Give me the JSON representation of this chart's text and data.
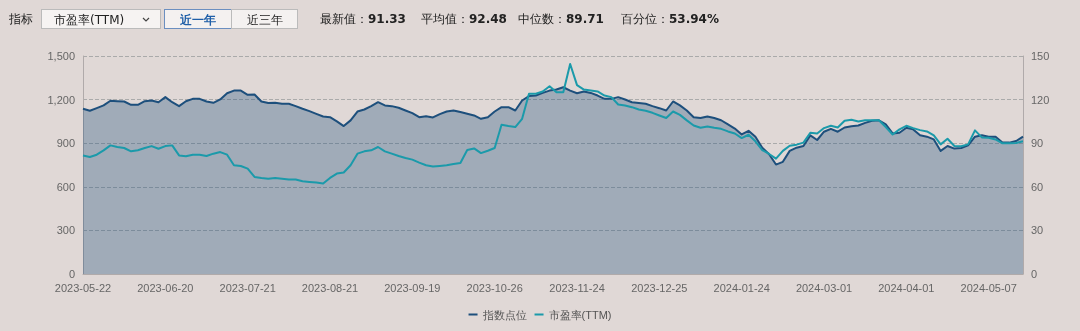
{
  "chart_data": {
    "type": "line",
    "annotations": [
      "指标",
      "市盈率(TTM)",
      "近一年",
      "近三年",
      "最新值：91.33",
      "平均值：92.48",
      "中位数：89.71",
      "百分位：53.94%"
    ],
    "categories": [
      "2023-05-22",
      null,
      null,
      null,
      null,
      null,
      null,
      null,
      null,
      null,
      null,
      null,
      "2023-06-20",
      null,
      null,
      null,
      null,
      null,
      null,
      null,
      null,
      null,
      null,
      null,
      "2023-07-21",
      null,
      null,
      null,
      null,
      null,
      null,
      null,
      null,
      null,
      null,
      null,
      "2023-08-21",
      null,
      null,
      null,
      null,
      null,
      null,
      null,
      null,
      null,
      null,
      null,
      "2023-09-19",
      null,
      null,
      null,
      null,
      null,
      null,
      null,
      null,
      null,
      null,
      null,
      "2023-10-26",
      null,
      null,
      null,
      null,
      null,
      null,
      null,
      null,
      null,
      null,
      null,
      "2023-11-24",
      null,
      null,
      null,
      null,
      null,
      null,
      null,
      null,
      null,
      null,
      null,
      "2023-12-25",
      null,
      null,
      null,
      null,
      null,
      null,
      null,
      null,
      null,
      null,
      null,
      "2024-01-24",
      null,
      null,
      null,
      null,
      null,
      null,
      null,
      null,
      null,
      null,
      null,
      "2024-03-01",
      null,
      null,
      null,
      null,
      null,
      null,
      null,
      null,
      null,
      null,
      null,
      "2024-04-01",
      null,
      null,
      null,
      null,
      null,
      null,
      null,
      null,
      null,
      null,
      null,
      "2024-05-07",
      null,
      null,
      null,
      null,
      null
    ],
    "series": [
      {
        "name": "指数点位",
        "type": "area",
        "color": "#1d4f7c",
        "values": [
          1137,
          1123,
          1141,
          1160,
          1192,
          1189,
          1187,
          1164,
          1164,
          1189,
          1194,
          1182,
          1217,
          1182,
          1155,
          1189,
          1205,
          1205,
          1187,
          1178,
          1201,
          1244,
          1262,
          1262,
          1233,
          1235,
          1187,
          1176,
          1178,
          1171,
          1171,
          1155,
          1137,
          1121,
          1102,
          1084,
          1079,
          1050,
          1018,
          1057,
          1118,
          1132,
          1155,
          1182,
          1160,
          1155,
          1144,
          1125,
          1107,
          1079,
          1086,
          1077,
          1100,
          1118,
          1125,
          1114,
          1102,
          1091,
          1068,
          1079,
          1118,
          1148,
          1148,
          1125,
          1194,
          1224,
          1228,
          1246,
          1262,
          1269,
          1285,
          1262,
          1244,
          1256,
          1246,
          1228,
          1205,
          1205,
          1217,
          1201,
          1182,
          1176,
          1171,
          1155,
          1141,
          1125,
          1187,
          1160,
          1125,
          1079,
          1073,
          1084,
          1073,
          1058,
          1029,
          1001,
          960,
          985,
          945,
          869,
          824,
          753,
          772,
          847,
          869,
          881,
          954,
          922,
          979,
          999,
          979,
          1008,
          1017,
          1022,
          1040,
          1054,
          1058,
          1029,
          967,
          972,
          1006,
          995,
          954,
          945,
          926,
          847,
          881,
          863,
          867,
          885,
          945,
          954,
          945,
          945,
          904,
          904,
          915,
          945
        ]
      },
      {
        "name": "市盈率(TTM)",
        "axis": "y2",
        "color": "#1b9aaa",
        "values": [
          81.6,
          80.5,
          82.1,
          85.1,
          88.5,
          87.4,
          86.7,
          84.4,
          85.1,
          86.7,
          88.0,
          86.2,
          88.0,
          88.5,
          81.6,
          81.0,
          82.1,
          82.1,
          81.2,
          82.8,
          83.9,
          82.1,
          74.8,
          74.3,
          72.5,
          66.8,
          66.1,
          65.6,
          66.1,
          65.6,
          65.0,
          65.0,
          63.8,
          63.3,
          62.9,
          62.2,
          66.1,
          69.1,
          69.8,
          74.8,
          82.8,
          84.4,
          85.1,
          87.4,
          84.4,
          82.8,
          81.2,
          79.8,
          78.7,
          76.6,
          74.8,
          73.9,
          74.3,
          74.8,
          75.7,
          76.4,
          85.3,
          86.4,
          83.2,
          84.8,
          86.7,
          102.7,
          101.8,
          101.1,
          106.8,
          124.0,
          124.0,
          125.6,
          129.2,
          125.1,
          125.1,
          144.5,
          130.0,
          126.9,
          126.2,
          125.6,
          122.8,
          121.7,
          116.6,
          116.0,
          114.8,
          113.2,
          112.3,
          110.9,
          109.1,
          107.3,
          111.8,
          109.5,
          105.7,
          102.2,
          100.6,
          101.5,
          100.6,
          99.9,
          98.1,
          96.7,
          93.5,
          95.8,
          91.3,
          85.3,
          82.6,
          79.4,
          84.7,
          88.3,
          89.0,
          90.4,
          97.2,
          96.7,
          100.4,
          102.0,
          100.8,
          105.4,
          106.1,
          104.9,
          105.8,
          105.8,
          105.8,
          101.1,
          96.0,
          99.5,
          102.0,
          100.4,
          99.0,
          98.1,
          95.4,
          89.2,
          93.1,
          88.1,
          87.9,
          89.2,
          98.8,
          94.0,
          93.8,
          92.6,
          89.9,
          89.9,
          90.1,
          91.3
        ]
      }
    ],
    "ylim": [
      0,
      1500
    ],
    "yticks": [
      0,
      300,
      600,
      900,
      {
        "value": 1200,
        "label": "1,200"
      },
      {
        "value": 1500,
        "label": "1,500"
      }
    ],
    "y2lim": [
      0,
      150
    ],
    "y2ticks": [
      0,
      30,
      60,
      90,
      120,
      150
    ],
    "grid": "y",
    "legend": "bottom",
    "marker": "none"
  }
}
